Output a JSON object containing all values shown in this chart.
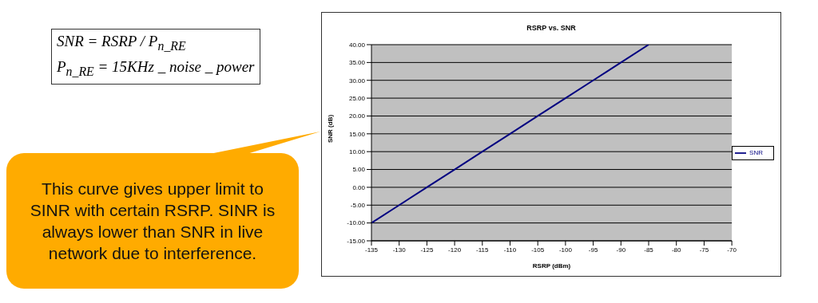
{
  "chart_data": {
    "type": "line",
    "title": "RSRP vs. SNR",
    "xlabel": "RSRP (dBm)",
    "ylabel": "SNR (dB)",
    "categories": [
      "-135",
      "-130",
      "-125",
      "-120",
      "-115",
      "-110",
      "-105",
      "-100",
      "-95",
      "-90",
      "-85",
      "-80",
      "-75",
      "-70"
    ],
    "series": [
      {
        "name": "SNR",
        "color": "#000080",
        "values": [
          -10,
          -5,
          0,
          5,
          10,
          15,
          20,
          25,
          30,
          35,
          40,
          null,
          null,
          null
        ]
      }
    ],
    "ylim": [
      -15,
      40
    ],
    "yticks": [
      {
        "value": -15,
        "label": "-15.00"
      },
      {
        "value": -10,
        "label": "-10.00"
      },
      {
        "value": -5,
        "label": "-5.00"
      },
      {
        "value": 0,
        "label": "0.00"
      },
      {
        "value": 5,
        "label": "5.00"
      },
      {
        "value": 10,
        "label": "10.00"
      },
      {
        "value": 15,
        "label": "15.00"
      },
      {
        "value": 20,
        "label": "20.00"
      },
      {
        "value": 25,
        "label": "25.00"
      },
      {
        "value": 30,
        "label": "30.00"
      },
      {
        "value": 35,
        "label": "35.00"
      },
      {
        "value": 40,
        "label": "40.00"
      }
    ],
    "grid": "y",
    "legend": "right",
    "marker": "none",
    "line_style": "solid",
    "annotations": [
      "SNR = RSRP / P$_{n_RE}$",
      "P$_{n_RE}$ = 15KHz _ noise _ power",
      "This curve gives upper limit to SINR with certain RSRP. SINR is always lower than SNR in live network due to interference."
    ]
  }
}
